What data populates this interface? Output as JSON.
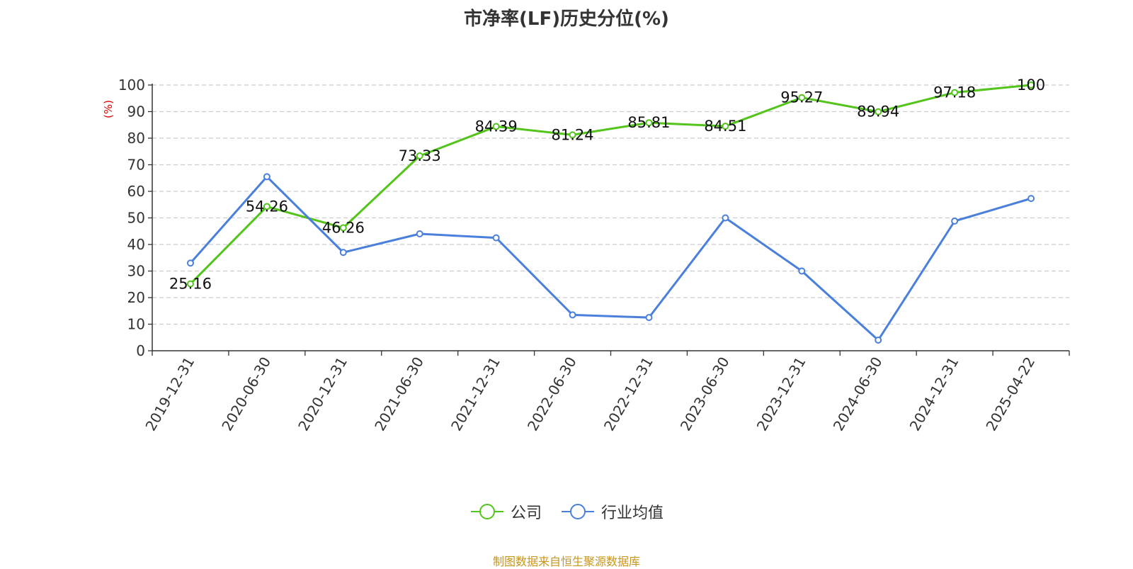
{
  "chart_data": {
    "type": "line",
    "title": "市净率(LF)历史分位(%)",
    "ylabel": "(%)",
    "xlabel": "",
    "ylim": [
      0,
      100
    ],
    "yticks": [
      0,
      10,
      20,
      30,
      40,
      50,
      60,
      70,
      80,
      90,
      100
    ],
    "categories": [
      "2019-12-31",
      "2020-06-30",
      "2020-12-31",
      "2021-06-30",
      "2021-12-31",
      "2022-06-30",
      "2022-12-31",
      "2023-06-30",
      "2023-12-31",
      "2024-06-30",
      "2024-12-31",
      "2025-04-22"
    ],
    "series": [
      {
        "name": "公司",
        "color": "#52c41a",
        "values": [
          25.16,
          54.26,
          46.26,
          73.33,
          84.39,
          81.24,
          85.81,
          84.51,
          95.27,
          89.94,
          97.18,
          100
        ],
        "labels": [
          "25.16",
          "54.26",
          "46.26",
          "73.33",
          "84.39",
          "81.24",
          "85.81",
          "84.51",
          "95.27",
          "89.94",
          "97.18",
          "100"
        ],
        "show_labels": true
      },
      {
        "name": "行业均值",
        "color": "#4a7fdc",
        "values": [
          33,
          65.5,
          37,
          44,
          42.5,
          13.5,
          12.5,
          50,
          30,
          4,
          48.8,
          57.3
        ],
        "show_labels": false
      }
    ],
    "grid": true,
    "legend_position": "bottom-center"
  },
  "legend": {
    "company": "公司",
    "industry": "行业均值"
  },
  "footer": {
    "source": "制图数据来自恒生聚源数据库"
  }
}
